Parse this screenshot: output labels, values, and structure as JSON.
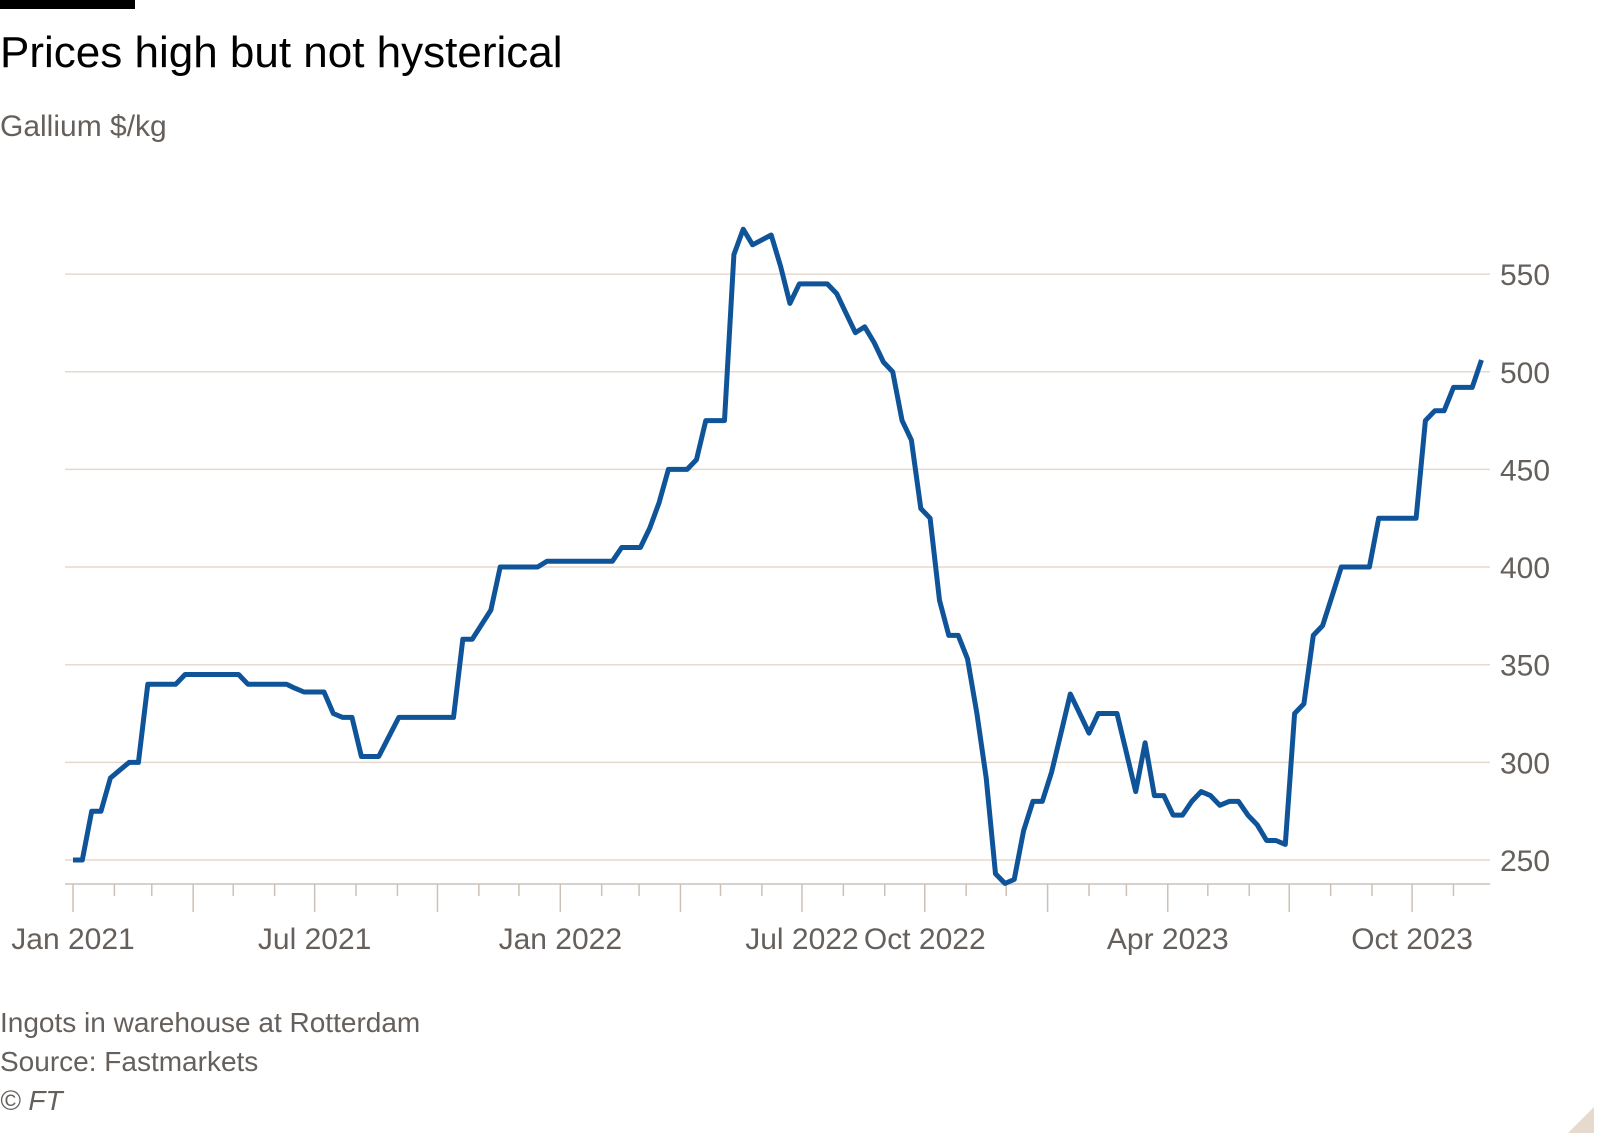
{
  "chart_data": {
    "type": "line",
    "title": "Prices high but not hysterical",
    "subtitle": "Gallium $/kg",
    "xlabel": "",
    "ylabel": "",
    "ylim": [
      238,
      580
    ],
    "xlim": [
      "2021-01-01",
      "2023-11-25"
    ],
    "yticks": [
      250,
      300,
      350,
      400,
      450,
      500,
      550
    ],
    "xtick_labels": [
      {
        "date": "2021-01-01",
        "label": "Jan 2021"
      },
      {
        "date": "2021-07-01",
        "label": "Jul 2021"
      },
      {
        "date": "2022-01-01",
        "label": "Jan 2022"
      },
      {
        "date": "2022-07-01",
        "label": "Jul 2022"
      },
      {
        "date": "2022-10-01",
        "label": "Oct 2022"
      },
      {
        "date": "2023-04-01",
        "label": "Apr 2023"
      },
      {
        "date": "2023-10-01",
        "label": "Oct 2023"
      }
    ],
    "grid": true,
    "y_axis_side": "right",
    "line_color": "#0f5499",
    "grid_color": "#e6d9ce",
    "points": [
      [
        "2021-01-01",
        250
      ],
      [
        "2021-01-08",
        250
      ],
      [
        "2021-01-15",
        275
      ],
      [
        "2021-01-22",
        275
      ],
      [
        "2021-01-29",
        292
      ],
      [
        "2021-02-05",
        296
      ],
      [
        "2021-02-12",
        300
      ],
      [
        "2021-02-19",
        300
      ],
      [
        "2021-02-26",
        340
      ],
      [
        "2021-03-19",
        340
      ],
      [
        "2021-03-26",
        345
      ],
      [
        "2021-05-05",
        345
      ],
      [
        "2021-05-12",
        340
      ],
      [
        "2021-06-10",
        340
      ],
      [
        "2021-06-16",
        338
      ],
      [
        "2021-06-23",
        336
      ],
      [
        "2021-07-08",
        336
      ],
      [
        "2021-07-15",
        325
      ],
      [
        "2021-07-22",
        323
      ],
      [
        "2021-07-29",
        323
      ],
      [
        "2021-08-05",
        303
      ],
      [
        "2021-08-18",
        303
      ],
      [
        "2021-09-02",
        323
      ],
      [
        "2021-10-13",
        323
      ],
      [
        "2021-10-20",
        363
      ],
      [
        "2021-10-27",
        363
      ],
      [
        "2021-11-10",
        378
      ],
      [
        "2021-11-17",
        400
      ],
      [
        "2021-12-15",
        400
      ],
      [
        "2021-12-22",
        403
      ],
      [
        "2022-02-09",
        403
      ],
      [
        "2022-02-16",
        410
      ],
      [
        "2022-03-02",
        410
      ],
      [
        "2022-03-09",
        420
      ],
      [
        "2022-03-16",
        433
      ],
      [
        "2022-03-23",
        450
      ],
      [
        "2022-04-06",
        450
      ],
      [
        "2022-04-13",
        455
      ],
      [
        "2022-04-20",
        475
      ],
      [
        "2022-05-04",
        475
      ],
      [
        "2022-05-11",
        560
      ],
      [
        "2022-05-18",
        573
      ],
      [
        "2022-05-25",
        565
      ],
      [
        "2022-06-08",
        570
      ],
      [
        "2022-06-15",
        554
      ],
      [
        "2022-06-22",
        535
      ],
      [
        "2022-06-29",
        545
      ],
      [
        "2022-07-20",
        545
      ],
      [
        "2022-07-27",
        540
      ],
      [
        "2022-08-03",
        530
      ],
      [
        "2022-08-10",
        520
      ],
      [
        "2022-08-17",
        523
      ],
      [
        "2022-08-24",
        515
      ],
      [
        "2022-08-31",
        505
      ],
      [
        "2022-09-07",
        500
      ],
      [
        "2022-09-14",
        475
      ],
      [
        "2022-09-21",
        465
      ],
      [
        "2022-09-28",
        430
      ],
      [
        "2022-10-05",
        425
      ],
      [
        "2022-10-12",
        383
      ],
      [
        "2022-10-19",
        365
      ],
      [
        "2022-10-26",
        365
      ],
      [
        "2022-11-02",
        353
      ],
      [
        "2022-11-09",
        325
      ],
      [
        "2022-11-16",
        292
      ],
      [
        "2022-11-23",
        243
      ],
      [
        "2022-11-30",
        238
      ],
      [
        "2022-12-07",
        240
      ],
      [
        "2022-12-14",
        265
      ],
      [
        "2022-12-21",
        280
      ],
      [
        "2022-12-28",
        280
      ],
      [
        "2023-01-04",
        295
      ],
      [
        "2023-01-11",
        315
      ],
      [
        "2023-01-18",
        335
      ],
      [
        "2023-01-25",
        325
      ],
      [
        "2023-02-01",
        315
      ],
      [
        "2023-02-08",
        325
      ],
      [
        "2023-02-22",
        325
      ],
      [
        "2023-03-01",
        305
      ],
      [
        "2023-03-08",
        285
      ],
      [
        "2023-03-15",
        310
      ],
      [
        "2023-03-22",
        283
      ],
      [
        "2023-03-29",
        283
      ],
      [
        "2023-04-05",
        273
      ],
      [
        "2023-04-12",
        273
      ],
      [
        "2023-04-19",
        280
      ],
      [
        "2023-04-26",
        285
      ],
      [
        "2023-05-03",
        283
      ],
      [
        "2023-05-10",
        278
      ],
      [
        "2023-05-17",
        280
      ],
      [
        "2023-05-24",
        280
      ],
      [
        "2023-05-31",
        273
      ],
      [
        "2023-06-07",
        268
      ],
      [
        "2023-06-14",
        260
      ],
      [
        "2023-06-21",
        260
      ],
      [
        "2023-06-28",
        258
      ],
      [
        "2023-07-05",
        325
      ],
      [
        "2023-07-12",
        330
      ],
      [
        "2023-07-19",
        365
      ],
      [
        "2023-07-26",
        370
      ],
      [
        "2023-08-02",
        385
      ],
      [
        "2023-08-09",
        400
      ],
      [
        "2023-08-30",
        400
      ],
      [
        "2023-09-06",
        425
      ],
      [
        "2023-10-04",
        425
      ],
      [
        "2023-10-11",
        475
      ],
      [
        "2023-10-18",
        480
      ],
      [
        "2023-10-25",
        480
      ],
      [
        "2023-11-01",
        492
      ],
      [
        "2023-11-15",
        492
      ],
      [
        "2023-11-22",
        506
      ]
    ]
  },
  "footer": {
    "note": "Ingots in warehouse at Rotterdam",
    "source": "Source: Fastmarkets",
    "copyright": "© FT"
  }
}
